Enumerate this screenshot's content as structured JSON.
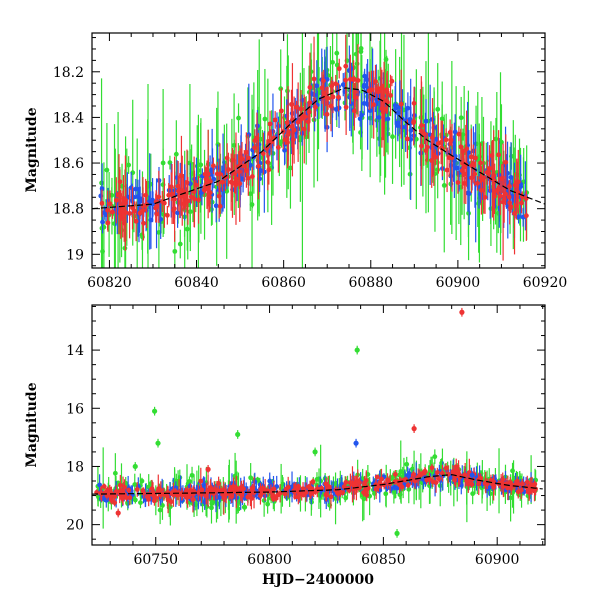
{
  "chart_data": [
    {
      "type": "scatter",
      "xlabel": "",
      "ylabel": "Magnitude",
      "xlim": [
        60816,
        60920
      ],
      "ylim": [
        19.06,
        18.03
      ],
      "y_inverted": true,
      "xticks": [
        60820,
        60840,
        60860,
        60880,
        60900,
        60920
      ],
      "yticks": [
        18.2,
        18.4,
        18.6,
        18.8,
        19
      ],
      "ytick_labels": [
        "18.2",
        "18.4",
        "18.6",
        "18.8",
        "19"
      ],
      "error_bars": true,
      "model_curve": {
        "color": "#000000",
        "x": [
          60816,
          60830,
          60845,
          60855,
          60862,
          60868,
          60874,
          60878,
          60883,
          60888,
          60893,
          60898,
          60905,
          60912,
          60920
        ],
        "y": [
          18.8,
          18.78,
          18.68,
          18.55,
          18.42,
          18.32,
          18.27,
          18.28,
          18.33,
          18.42,
          18.5,
          18.56,
          18.64,
          18.72,
          18.78
        ]
      },
      "series": [
        {
          "color": "#33dd33"
        },
        {
          "color": "#2255ee"
        },
        {
          "color": "#ee3333"
        }
      ]
    },
    {
      "type": "scatter",
      "xlabel": "HJD−2400000",
      "ylabel": "Magnitude",
      "xlim": [
        60722,
        60921
      ],
      "ylim": [
        20.7,
        12.45
      ],
      "y_inverted": true,
      "xticks": [
        60750,
        60800,
        60850,
        60900
      ],
      "yticks": [
        14,
        16,
        18,
        20
      ],
      "ytick_labels": [
        "14",
        "16",
        "18",
        "20"
      ],
      "error_bars": true,
      "model_curve": {
        "color": "#000000",
        "x": [
          60722,
          60760,
          60800,
          60830,
          60850,
          60870,
          60880,
          60890,
          60905,
          60921
        ],
        "y": [
          18.95,
          18.92,
          18.88,
          18.8,
          18.62,
          18.35,
          18.28,
          18.45,
          18.65,
          18.78
        ]
      },
      "outliers": [
        {
          "series": 2,
          "x": 60884.5,
          "y": 12.7
        },
        {
          "series": 0,
          "x": 60838.5,
          "y": 14.0
        },
        {
          "series": 0,
          "x": 60749.5,
          "y": 16.1
        },
        {
          "series": 0,
          "x": 60751,
          "y": 17.2
        },
        {
          "series": 1,
          "x": 60838,
          "y": 17.2
        },
        {
          "series": 0,
          "x": 60786,
          "y": 16.9
        },
        {
          "series": 2,
          "x": 60863.5,
          "y": 16.7
        },
        {
          "series": 0,
          "x": 60820,
          "y": 17.5
        },
        {
          "series": 0,
          "x": 60741,
          "y": 18.0
        },
        {
          "series": 2,
          "x": 60733.5,
          "y": 19.6
        },
        {
          "series": 0,
          "x": 60856,
          "y": 20.3
        },
        {
          "series": 0,
          "x": 60789,
          "y": 19.4
        },
        {
          "series": 2,
          "x": 60773,
          "y": 18.1
        },
        {
          "series": 1,
          "x": 60889,
          "y": 18.3
        }
      ],
      "series": [
        {
          "color": "#33dd33"
        },
        {
          "color": "#2255ee"
        },
        {
          "color": "#ee3333"
        }
      ]
    }
  ]
}
